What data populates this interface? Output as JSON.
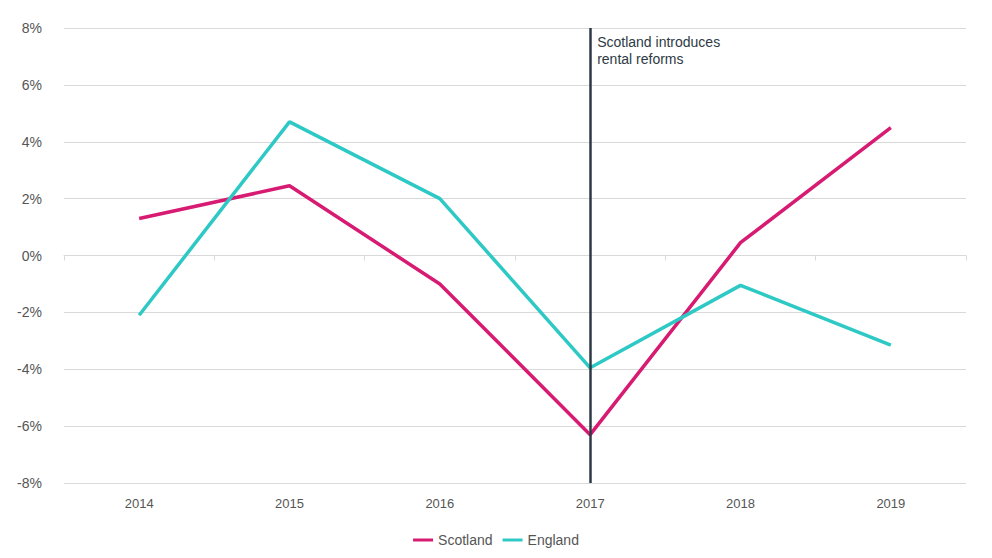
{
  "chart_data": {
    "type": "line",
    "categories": [
      "2014",
      "2015",
      "2016",
      "2017",
      "2018",
      "2019"
    ],
    "series": [
      {
        "name": "Scotland",
        "color": "#d81b72",
        "values": [
          1.3,
          2.45,
          -1.0,
          -6.3,
          0.45,
          4.5
        ]
      },
      {
        "name": "England",
        "color": "#2ec9c5",
        "values": [
          -2.1,
          4.7,
          2.0,
          -3.95,
          -1.05,
          -3.15
        ]
      }
    ],
    "ylim": [
      -8,
      8
    ],
    "yticks": [
      {
        "value": -8,
        "label": "-8%"
      },
      {
        "value": -6,
        "label": "-6%"
      },
      {
        "value": -4,
        "label": "-4%"
      },
      {
        "value": -2,
        "label": "-2%"
      },
      {
        "value": 0,
        "label": "0%"
      },
      {
        "value": 2,
        "label": "2%"
      },
      {
        "value": 4,
        "label": "4%"
      },
      {
        "value": 6,
        "label": "6%"
      },
      {
        "value": 8,
        "label": "8%"
      }
    ],
    "annotations": [
      {
        "x": "2017",
        "text_lines": [
          "Scotland introduces",
          "rental reforms"
        ]
      }
    ],
    "grid": true,
    "legend": "bottom"
  }
}
